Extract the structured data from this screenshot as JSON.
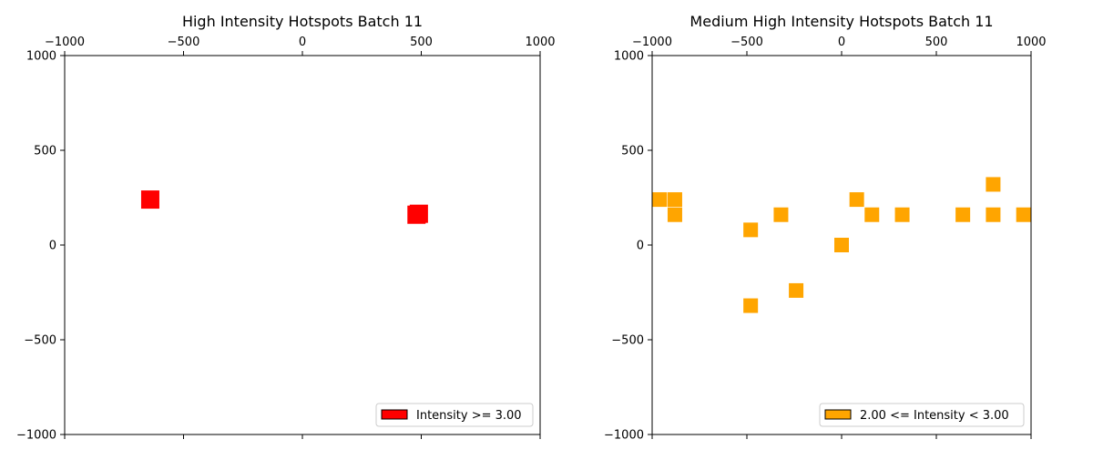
{
  "chart_data": [
    {
      "type": "scatter",
      "marker": "square",
      "title": "High Intensity Hotspots Batch 11",
      "xlim": [
        -1000,
        1000
      ],
      "ylim": [
        -1000,
        1000
      ],
      "x_axis_position": "top",
      "xticks": [
        "−1000",
        "−500",
        "0",
        "500",
        "1000"
      ],
      "yticks": [
        "1000",
        "500",
        "0",
        "−500",
        "−1000"
      ],
      "grid": false,
      "legend_position": "bottom-right",
      "series": [
        {
          "name": "Intensity >= 3.00",
          "color": "#ff0000",
          "points": [
            {
              "x": -640,
              "y": 240
            },
            {
              "x": 480,
              "y": 160
            },
            {
              "x": 490,
              "y": 165
            }
          ]
        }
      ]
    },
    {
      "type": "scatter",
      "marker": "square",
      "title": "Medium High Intensity Hotspots Batch 11",
      "xlim": [
        -1000,
        1000
      ],
      "ylim": [
        -1000,
        1000
      ],
      "x_axis_position": "top",
      "xticks": [
        "−1000",
        "−500",
        "0",
        "500",
        "1000"
      ],
      "yticks": [
        "1000",
        "500",
        "0",
        "−500",
        "−1000"
      ],
      "grid": false,
      "legend_position": "bottom-right",
      "series": [
        {
          "name": "2.00 <= Intensity < 3.00",
          "color": "#ffa500",
          "points": [
            {
              "x": -960,
              "y": 240
            },
            {
              "x": -880,
              "y": 240
            },
            {
              "x": -880,
              "y": 160
            },
            {
              "x": -480,
              "y": 80
            },
            {
              "x": -480,
              "y": -320
            },
            {
              "x": -320,
              "y": 160
            },
            {
              "x": -240,
              "y": -240
            },
            {
              "x": 0,
              "y": 0
            },
            {
              "x": 80,
              "y": 240
            },
            {
              "x": 160,
              "y": 160
            },
            {
              "x": 320,
              "y": 160
            },
            {
              "x": 640,
              "y": 160
            },
            {
              "x": 800,
              "y": 320
            },
            {
              "x": 800,
              "y": 160
            },
            {
              "x": 960,
              "y": 160
            }
          ]
        }
      ]
    }
  ]
}
